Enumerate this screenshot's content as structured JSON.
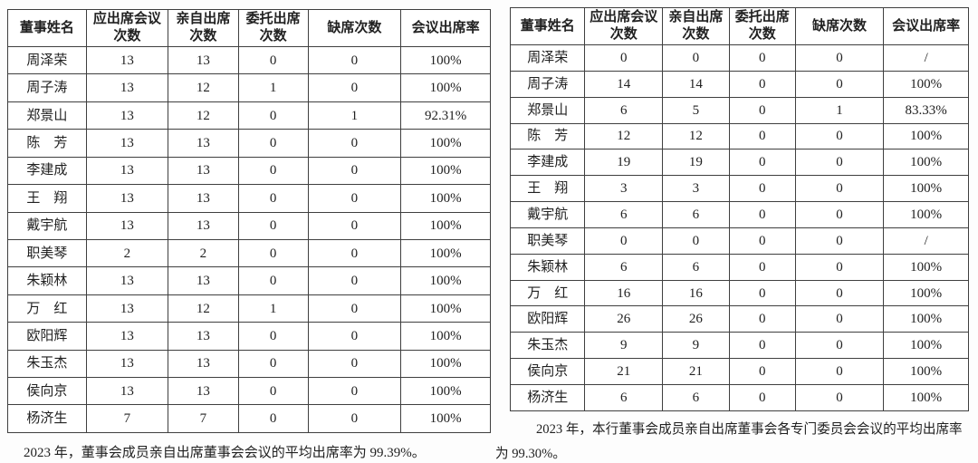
{
  "theme": {
    "paper": "#fdfdfd",
    "ink": "#212121",
    "border": "#3f3f3f"
  },
  "tables": [
    {
      "id": "board-meeting-attendance",
      "headers": [
        "董事姓名",
        "应出席会议次数",
        "亲自出席次数",
        "委托出席次数",
        "缺席次数",
        "会议出席率"
      ],
      "rows": [
        [
          "周泽荣",
          "13",
          "13",
          "0",
          "0",
          "100%"
        ],
        [
          "周子涛",
          "13",
          "12",
          "1",
          "0",
          "100%"
        ],
        [
          "郑景山",
          "13",
          "12",
          "0",
          "1",
          "92.31%"
        ],
        [
          "陈　芳",
          "13",
          "13",
          "0",
          "0",
          "100%"
        ],
        [
          "李建成",
          "13",
          "13",
          "0",
          "0",
          "100%"
        ],
        [
          "王　翔",
          "13",
          "13",
          "0",
          "0",
          "100%"
        ],
        [
          "戴宇航",
          "13",
          "13",
          "0",
          "0",
          "100%"
        ],
        [
          "职美琴",
          "2",
          "2",
          "0",
          "0",
          "100%"
        ],
        [
          "朱颖林",
          "13",
          "13",
          "0",
          "0",
          "100%"
        ],
        [
          "万　红",
          "13",
          "12",
          "1",
          "0",
          "100%"
        ],
        [
          "欧阳辉",
          "13",
          "13",
          "0",
          "0",
          "100%"
        ],
        [
          "朱玉杰",
          "13",
          "13",
          "0",
          "0",
          "100%"
        ],
        [
          "侯向京",
          "13",
          "13",
          "0",
          "0",
          "100%"
        ],
        [
          "杨济生",
          "7",
          "7",
          "0",
          "0",
          "100%"
        ]
      ],
      "footnote": "2023 年，董事会成员亲自出席董事会会议的平均出席率为 99.39%。"
    },
    {
      "id": "committee-meeting-attendance",
      "headers": [
        "董事姓名",
        "应出席会议次数",
        "亲自出席次数",
        "委托出席次数",
        "缺席次数",
        "会议出席率"
      ],
      "rows": [
        [
          "周泽荣",
          "0",
          "0",
          "0",
          "0",
          "/"
        ],
        [
          "周子涛",
          "14",
          "14",
          "0",
          "0",
          "100%"
        ],
        [
          "郑景山",
          "6",
          "5",
          "0",
          "1",
          "83.33%"
        ],
        [
          "陈　芳",
          "12",
          "12",
          "0",
          "0",
          "100%"
        ],
        [
          "李建成",
          "19",
          "19",
          "0",
          "0",
          "100%"
        ],
        [
          "王　翔",
          "3",
          "3",
          "0",
          "0",
          "100%"
        ],
        [
          "戴宇航",
          "6",
          "6",
          "0",
          "0",
          "100%"
        ],
        [
          "职美琴",
          "0",
          "0",
          "0",
          "0",
          "/"
        ],
        [
          "朱颖林",
          "6",
          "6",
          "0",
          "0",
          "100%"
        ],
        [
          "万　红",
          "16",
          "16",
          "0",
          "0",
          "100%"
        ],
        [
          "欧阳辉",
          "26",
          "26",
          "0",
          "0",
          "100%"
        ],
        [
          "朱玉杰",
          "9",
          "9",
          "0",
          "0",
          "100%"
        ],
        [
          "侯向京",
          "21",
          "21",
          "0",
          "0",
          "100%"
        ],
        [
          "杨济生",
          "6",
          "6",
          "0",
          "0",
          "100%"
        ]
      ],
      "footnote": "2023 年，本行董事会成员亲自出席董事会各专门委员会会议的平均出席率为 99.30%。"
    }
  ]
}
